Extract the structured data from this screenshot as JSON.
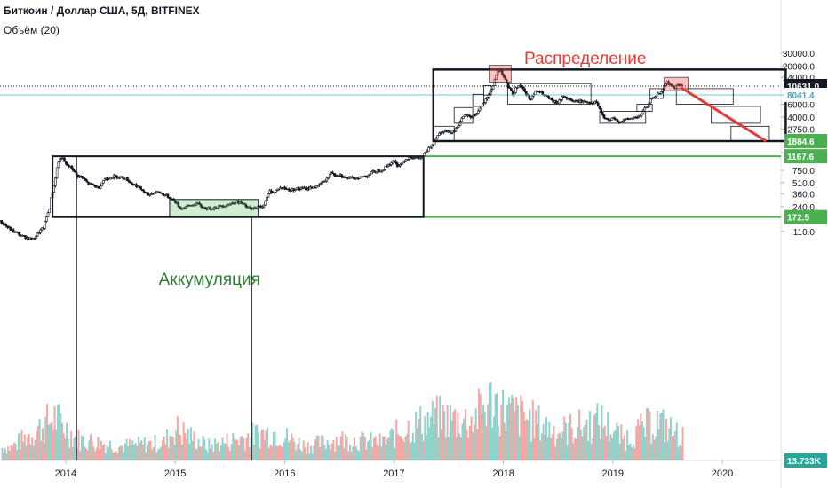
{
  "header": {
    "title": "Биткоин / Доллар США, 5Д, BITFINEX",
    "volume_label": "Объём (20)"
  },
  "chart_data": {
    "type": "candlestick",
    "symbol": "BTCUSD",
    "interval": "5Д",
    "exchange": "BITFINEX",
    "y_scale": "log",
    "ylim": [
      75,
      35000
    ],
    "y_ticks": [
      "30000.0",
      "20000.0",
      "14000.0",
      "8000.0",
      "6000.0",
      "4000.0",
      "2750.0",
      "1300.0",
      "750.0",
      "510.0",
      "360.0",
      "240.0",
      "110.0"
    ],
    "x_ticks": [
      "2014",
      "2015",
      "2016",
      "2017",
      "2018",
      "2019",
      "2020"
    ],
    "x_range": [
      2013.4,
      2020.95
    ],
    "current_price": "10631.0",
    "price_labels": [
      "8041.4",
      "1884.6",
      "1167.6",
      "172.5"
    ],
    "volume_label": "13.733K",
    "price_path": [
      [
        2013.4,
        150
      ],
      [
        2013.5,
        115
      ],
      [
        2013.6,
        95
      ],
      [
        2013.7,
        85
      ],
      [
        2013.8,
        125
      ],
      [
        2013.85,
        220
      ],
      [
        2013.9,
        500
      ],
      [
        2013.93,
        950
      ],
      [
        2013.96,
        1150
      ],
      [
        2014.0,
        900
      ],
      [
        2014.05,
        820
      ],
      [
        2014.1,
        640
      ],
      [
        2014.15,
        600
      ],
      [
        2014.2,
        500
      ],
      [
        2014.25,
        470
      ],
      [
        2014.3,
        430
      ],
      [
        2014.35,
        560
      ],
      [
        2014.4,
        600
      ],
      [
        2014.45,
        620
      ],
      [
        2014.5,
        610
      ],
      [
        2014.55,
        580
      ],
      [
        2014.6,
        500
      ],
      [
        2014.65,
        460
      ],
      [
        2014.7,
        400
      ],
      [
        2014.75,
        340
      ],
      [
        2014.8,
        370
      ],
      [
        2014.85,
        380
      ],
      [
        2014.9,
        350
      ],
      [
        2014.95,
        320
      ],
      [
        2015.0,
        280
      ],
      [
        2015.05,
        225
      ],
      [
        2015.1,
        240
      ],
      [
        2015.15,
        250
      ],
      [
        2015.2,
        265
      ],
      [
        2015.25,
        235
      ],
      [
        2015.3,
        225
      ],
      [
        2015.4,
        240
      ],
      [
        2015.5,
        260
      ],
      [
        2015.55,
        280
      ],
      [
        2015.6,
        270
      ],
      [
        2015.65,
        240
      ],
      [
        2015.7,
        220
      ],
      [
        2015.75,
        235
      ],
      [
        2015.8,
        240
      ],
      [
        2015.84,
        320
      ],
      [
        2015.87,
        400
      ],
      [
        2015.9,
        370
      ],
      [
        2015.95,
        430
      ],
      [
        2016.0,
        430
      ],
      [
        2016.05,
        400
      ],
      [
        2016.1,
        420
      ],
      [
        2016.2,
        420
      ],
      [
        2016.25,
        440
      ],
      [
        2016.3,
        450
      ],
      [
        2016.35,
        520
      ],
      [
        2016.4,
        600
      ],
      [
        2016.43,
        720
      ],
      [
        2016.46,
        650
      ],
      [
        2016.5,
        660
      ],
      [
        2016.55,
        600
      ],
      [
        2016.6,
        580
      ],
      [
        2016.65,
        590
      ],
      [
        2016.7,
        610
      ],
      [
        2016.75,
        630
      ],
      [
        2016.8,
        700
      ],
      [
        2016.85,
        740
      ],
      [
        2016.9,
        770
      ],
      [
        2016.95,
        900
      ],
      [
        2017.0,
        1000
      ],
      [
        2017.03,
        880
      ],
      [
        2017.06,
        900
      ],
      [
        2017.1,
        1050
      ],
      [
        2017.15,
        1150
      ],
      [
        2017.2,
        1100
      ],
      [
        2017.25,
        1100
      ],
      [
        2017.28,
        1250
      ],
      [
        2017.32,
        1500
      ],
      [
        2017.36,
        1800
      ],
      [
        2017.4,
        2300
      ],
      [
        2017.45,
        2650
      ],
      [
        2017.5,
        2500
      ],
      [
        2017.55,
        2600
      ],
      [
        2017.6,
        3300
      ],
      [
        2017.65,
        4300
      ],
      [
        2017.7,
        4000
      ],
      [
        2017.75,
        4400
      ],
      [
        2017.8,
        5700
      ],
      [
        2017.85,
        7100
      ],
      [
        2017.9,
        10000
      ],
      [
        2017.94,
        16000
      ],
      [
        2017.97,
        19000
      ],
      [
        2018.0,
        14000
      ],
      [
        2018.03,
        11500
      ],
      [
        2018.06,
        9500
      ],
      [
        2018.09,
        8000
      ],
      [
        2018.12,
        10500
      ],
      [
        2018.16,
        11000
      ],
      [
        2018.2,
        8500
      ],
      [
        2018.25,
        7000
      ],
      [
        2018.3,
        9200
      ],
      [
        2018.35,
        8500
      ],
      [
        2018.4,
        7500
      ],
      [
        2018.45,
        6500
      ],
      [
        2018.5,
        6300
      ],
      [
        2018.55,
        7800
      ],
      [
        2018.6,
        7000
      ],
      [
        2018.65,
        6500
      ],
      [
        2018.7,
        6600
      ],
      [
        2018.75,
        6500
      ],
      [
        2018.8,
        6400
      ],
      [
        2018.85,
        6300
      ],
      [
        2018.88,
        5000
      ],
      [
        2018.92,
        3900
      ],
      [
        2018.96,
        3600
      ],
      [
        2019.0,
        3800
      ],
      [
        2019.05,
        3500
      ],
      [
        2019.1,
        3600
      ],
      [
        2019.15,
        3800
      ],
      [
        2019.2,
        3950
      ],
      [
        2019.25,
        4100
      ],
      [
        2019.28,
        5100
      ],
      [
        2019.32,
        5500
      ],
      [
        2019.36,
        7500
      ],
      [
        2019.4,
        8000
      ],
      [
        2019.44,
        8500
      ],
      [
        2019.47,
        11000
      ],
      [
        2019.5,
        12000
      ],
      [
        2019.53,
        10800
      ],
      [
        2019.57,
        10000
      ],
      [
        2019.6,
        11500
      ],
      [
        2019.63,
        10500
      ]
    ],
    "volume_path": [
      [
        2013.5,
        18
      ],
      [
        2013.9,
        60
      ],
      [
        2014.1,
        30
      ],
      [
        2014.5,
        20
      ],
      [
        2014.9,
        25
      ],
      [
        2015.0,
        45
      ],
      [
        2015.3,
        20
      ],
      [
        2015.7,
        35
      ],
      [
        2015.9,
        40
      ],
      [
        2016.2,
        20
      ],
      [
        2016.5,
        30
      ],
      [
        2016.9,
        25
      ],
      [
        2017.1,
        45
      ],
      [
        2017.4,
        60
      ],
      [
        2017.7,
        55
      ],
      [
        2017.9,
        85
      ],
      [
        2018.0,
        70
      ],
      [
        2018.2,
        60
      ],
      [
        2018.5,
        40
      ],
      [
        2018.9,
        55
      ],
      [
        2019.1,
        30
      ],
      [
        2019.4,
        55
      ],
      [
        2019.6,
        35
      ]
    ],
    "annotations": [
      {
        "type": "text",
        "text": "Аккумуляция"
      },
      {
        "type": "text",
        "text": "Распределение"
      }
    ]
  }
}
